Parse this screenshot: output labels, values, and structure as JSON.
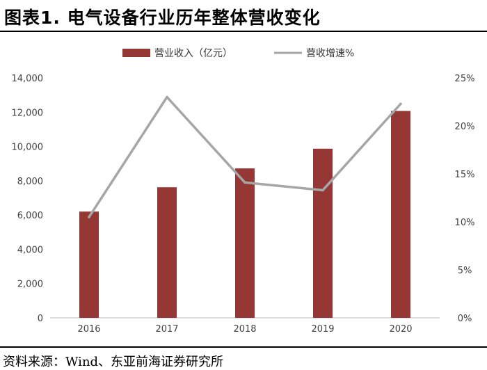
{
  "header": {
    "title": "图表1. 电气设备行业历年整体营收变化"
  },
  "footer": {
    "source": "资料来源：Wind、东亚前海证券研究所"
  },
  "chart_data": {
    "type": "bar",
    "categories": [
      "2016",
      "2017",
      "2018",
      "2019",
      "2020"
    ],
    "series": [
      {
        "name": "营业收入（亿元）",
        "type": "bar",
        "axis": "left",
        "color": "#953735",
        "values": [
          6200,
          7620,
          8720,
          9870,
          12070
        ]
      },
      {
        "name": "营收增速%",
        "type": "line",
        "axis": "right",
        "color": "#a6a6a6",
        "values": [
          10.5,
          23.0,
          14.1,
          13.3,
          22.3
        ]
      }
    ],
    "y_left": {
      "min": 0,
      "max": 14000,
      "step": 2000,
      "tick_labels": [
        "0",
        "2,000",
        "4,000",
        "6,000",
        "8,000",
        "10,000",
        "12,000",
        "14,000"
      ]
    },
    "y_right": {
      "min": 0,
      "max": 25,
      "step": 5,
      "tick_labels": [
        "0%",
        "5%",
        "10%",
        "15%",
        "20%",
        "25%"
      ]
    },
    "grid": false,
    "legend_position": "top"
  }
}
